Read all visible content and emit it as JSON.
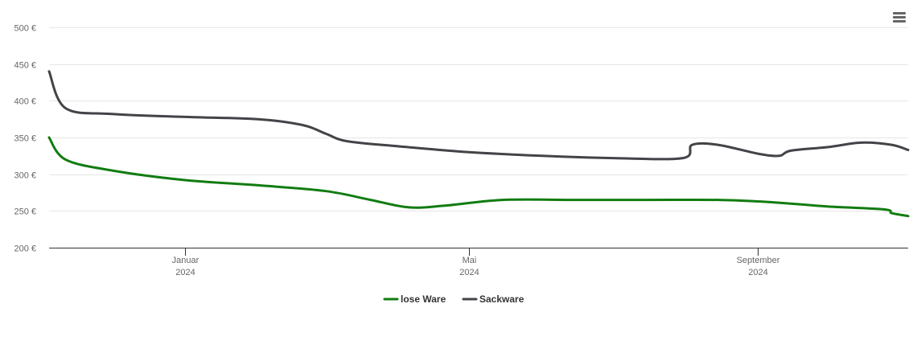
{
  "chart_data": {
    "type": "line",
    "x_ticks": [
      {
        "label": "Januar",
        "year": "2024",
        "x": "2024-01-01"
      },
      {
        "label": "Mai",
        "year": "2024",
        "x": "2024-05-01"
      },
      {
        "label": "September",
        "year": "2024",
        "x": "2024-09-01"
      }
    ],
    "xlim": [
      "2023-11-04",
      "2024-11-04"
    ],
    "y_ticks": [
      {
        "label": "200 €",
        "value": 200
      },
      {
        "label": "250 €",
        "value": 250
      },
      {
        "label": "300 €",
        "value": 300
      },
      {
        "label": "350 €",
        "value": 350
      },
      {
        "label": "400 €",
        "value": 400
      },
      {
        "label": "450 €",
        "value": 450
      },
      {
        "label": "500 €",
        "value": 500
      }
    ],
    "ylim": [
      200,
      500
    ],
    "grid": true,
    "legend_position": "bottom",
    "series": [
      {
        "name": "lose Ware",
        "color": "#117c11",
        "points": [
          {
            "x": "2023-11-04",
            "y": 350
          },
          {
            "x": "2023-11-11",
            "y": 320
          },
          {
            "x": "2023-12-01",
            "y": 305
          },
          {
            "x": "2024-01-01",
            "y": 292
          },
          {
            "x": "2024-02-01",
            "y": 285
          },
          {
            "x": "2024-03-01",
            "y": 277
          },
          {
            "x": "2024-03-20",
            "y": 265
          },
          {
            "x": "2024-04-05",
            "y": 255
          },
          {
            "x": "2024-04-20",
            "y": 257
          },
          {
            "x": "2024-05-15",
            "y": 265
          },
          {
            "x": "2024-06-15",
            "y": 265
          },
          {
            "x": "2024-07-15",
            "y": 265
          },
          {
            "x": "2024-08-15",
            "y": 265
          },
          {
            "x": "2024-09-01",
            "y": 263
          },
          {
            "x": "2024-09-15",
            "y": 260
          },
          {
            "x": "2024-10-01",
            "y": 256
          },
          {
            "x": "2024-10-25",
            "y": 252
          },
          {
            "x": "2024-10-28",
            "y": 247
          },
          {
            "x": "2024-11-04",
            "y": 243
          }
        ]
      },
      {
        "name": "Sackware",
        "color": "#434348",
        "points": [
          {
            "x": "2023-11-04",
            "y": 440
          },
          {
            "x": "2023-11-11",
            "y": 390
          },
          {
            "x": "2023-12-01",
            "y": 382
          },
          {
            "x": "2024-01-01",
            "y": 378
          },
          {
            "x": "2024-02-01",
            "y": 375
          },
          {
            "x": "2024-02-20",
            "y": 367
          },
          {
            "x": "2024-03-01",
            "y": 355
          },
          {
            "x": "2024-03-10",
            "y": 345
          },
          {
            "x": "2024-04-01",
            "y": 338
          },
          {
            "x": "2024-05-01",
            "y": 330
          },
          {
            "x": "2024-06-01",
            "y": 325
          },
          {
            "x": "2024-07-01",
            "y": 322
          },
          {
            "x": "2024-07-31",
            "y": 322
          },
          {
            "x": "2024-08-04",
            "y": 340
          },
          {
            "x": "2024-08-15",
            "y": 340
          },
          {
            "x": "2024-09-01",
            "y": 328
          },
          {
            "x": "2024-09-10",
            "y": 325
          },
          {
            "x": "2024-09-15",
            "y": 332
          },
          {
            "x": "2024-10-01",
            "y": 337
          },
          {
            "x": "2024-10-15",
            "y": 343
          },
          {
            "x": "2024-10-28",
            "y": 340
          },
          {
            "x": "2024-11-04",
            "y": 333
          }
        ]
      }
    ]
  },
  "toolbar": {
    "menu_icon": "hamburger-menu-icon"
  }
}
